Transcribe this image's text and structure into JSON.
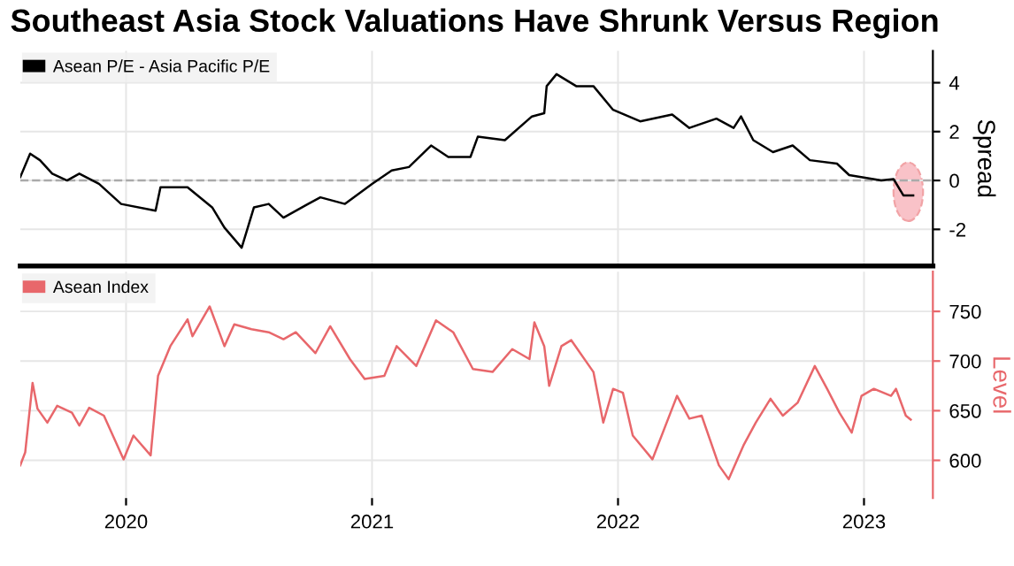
{
  "chart_data": [
    {
      "type": "line",
      "title": "Southeast Asia Stock Valuations Have Shrunk Versus Region",
      "ylabel": "Spread",
      "series": [
        {
          "name": "Asean P/E - Asia Pacific P/E",
          "color": "#000000",
          "x": [
            2019.57,
            2019.61,
            2019.65,
            2019.7,
            2019.76,
            2019.81,
            2019.89,
            2019.98,
            2020.12,
            2020.14,
            2020.25,
            2020.35,
            2020.4,
            2020.47,
            2020.52,
            2020.58,
            2020.64,
            2020.74,
            2020.79,
            2020.89,
            2021.0,
            2021.08,
            2021.15,
            2021.24,
            2021.31,
            2021.4,
            2021.43,
            2021.54,
            2021.65,
            2021.7,
            2021.71,
            2021.75,
            2021.83,
            2021.9,
            2021.98,
            2022.09,
            2022.22,
            2022.29,
            2022.4,
            2022.47,
            2022.5,
            2022.55,
            2022.63,
            2022.71,
            2022.78,
            2022.89,
            2022.94,
            2023.07,
            2023.12,
            2023.16,
            2023.2
          ],
          "values": [
            0.14,
            1.1,
            0.83,
            0.28,
            0,
            0.28,
            -0.14,
            -0.96,
            -1.24,
            -0.28,
            -0.28,
            -1.1,
            -1.93,
            -2.75,
            -1.1,
            -0.96,
            -1.52,
            -0.96,
            -0.69,
            -0.96,
            -0.14,
            0.41,
            0.55,
            1.43,
            0.96,
            0.96,
            1.79,
            1.65,
            2.62,
            2.75,
            3.86,
            4.35,
            3.86,
            3.86,
            2.89,
            2.42,
            2.7,
            2.15,
            2.53,
            2.15,
            2.62,
            1.65,
            1.16,
            1.43,
            0.83,
            0.69,
            0.22,
            0,
            0.06,
            -0.61,
            -0.61
          ]
        }
      ],
      "xlim": [
        2019.57,
        2023.28
      ],
      "xticks": [
        2020,
        2021,
        2022,
        2023
      ],
      "ylim": [
        -3.5,
        5.3
      ],
      "yticks": [
        {
          "value": -2,
          "label": "-2"
        },
        0,
        2,
        4
      ],
      "ref_lines": [
        {
          "axis": "y",
          "value": 0,
          "color": "#aaaaaa",
          "line_style": "dashed"
        }
      ],
      "grid": true,
      "legend": "top left",
      "tick_labels": "y"
    },
    {
      "type": "line",
      "ylabel": "Level",
      "series": [
        {
          "name": "Asean Index",
          "color": "#e8676b",
          "x": [
            2019.57,
            2019.59,
            2019.62,
            2019.64,
            2019.68,
            2019.72,
            2019.78,
            2019.81,
            2019.85,
            2019.91,
            2019.99,
            2020.03,
            2020.1,
            2020.13,
            2020.18,
            2020.25,
            2020.27,
            2020.34,
            2020.4,
            2020.44,
            2020.51,
            2020.58,
            2020.64,
            2020.69,
            2020.77,
            2020.83,
            2020.91,
            2020.97,
            2021.05,
            2021.1,
            2021.18,
            2021.26,
            2021.33,
            2021.41,
            2021.49,
            2021.57,
            2021.64,
            2021.66,
            2021.7,
            2021.72,
            2021.77,
            2021.81,
            2021.9,
            2021.94,
            2021.98,
            2022.02,
            2022.06,
            2022.14,
            2022.24,
            2022.29,
            2022.34,
            2022.41,
            2022.45,
            2022.51,
            2022.56,
            2022.62,
            2022.67,
            2022.73,
            2022.8,
            2022.85,
            2022.9,
            2022.95,
            2022.99,
            2023.04,
            2023.11,
            2023.13,
            2023.17,
            2023.19
          ],
          "values": [
            595,
            608,
            678,
            652,
            638,
            655,
            648,
            635,
            653,
            645,
            601,
            625,
            605,
            685,
            715,
            742,
            725,
            755,
            715,
            737,
            732,
            729,
            722,
            729,
            708,
            735,
            702,
            682,
            685,
            715,
            695,
            741,
            729,
            692,
            689,
            712,
            702,
            739,
            715,
            675,
            715,
            721,
            689,
            638,
            672,
            668,
            625,
            601,
            665,
            642,
            645,
            595,
            581,
            615,
            638,
            662,
            645,
            658,
            695,
            672,
            648,
            628,
            665,
            672,
            665,
            672,
            645,
            641
          ]
        }
      ],
      "xlim": [
        2019.57,
        2023.28
      ],
      "xticks": [
        2020,
        2021,
        2022,
        2023
      ],
      "ylim": [
        562,
        790
      ],
      "yticks": [
        600,
        650,
        700,
        750
      ],
      "grid": true,
      "legend": "top left"
    }
  ]
}
